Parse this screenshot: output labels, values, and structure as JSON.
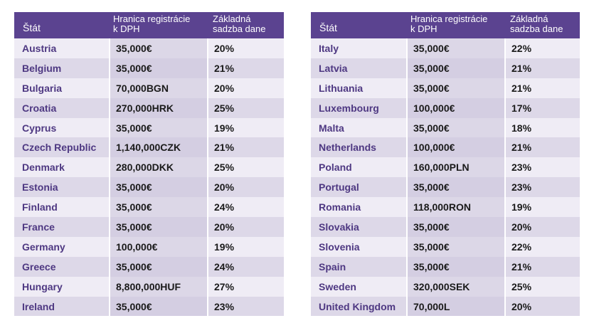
{
  "headers": {
    "country": "Štát",
    "threshold_line1": "Hranica registrácie",
    "threshold_line2": "k DPH",
    "rate_line1": "Základná",
    "rate_line2": "sadzba dane"
  },
  "left_rows": [
    {
      "country": "Austria",
      "threshold": "35,000€",
      "rate": "20%"
    },
    {
      "country": "Belgium",
      "threshold": "35,000€",
      "rate": "21%"
    },
    {
      "country": "Bulgaria",
      "threshold": "70,000BGN",
      "rate": "20%"
    },
    {
      "country": "Croatia",
      "threshold": "270,000HRK",
      "rate": "25%"
    },
    {
      "country": "Cyprus",
      "threshold": "35,000€",
      "rate": "19%"
    },
    {
      "country": "Czech Republic",
      "threshold": "1,140,000CZK",
      "rate": "21%"
    },
    {
      "country": "Denmark",
      "threshold": "280,000DKK",
      "rate": "25%"
    },
    {
      "country": "Estonia",
      "threshold": "35,000€",
      "rate": "20%"
    },
    {
      "country": "Finland",
      "threshold": "35,000€",
      "rate": "24%"
    },
    {
      "country": "France",
      "threshold": "35,000€",
      "rate": "20%"
    },
    {
      "country": "Germany",
      "threshold": "100,000€",
      "rate": "19%"
    },
    {
      "country": "Greece",
      "threshold": "35,000€",
      "rate": "24%"
    },
    {
      "country": "Hungary",
      "threshold": "8,800,000HUF",
      "rate": "27%"
    },
    {
      "country": "Ireland",
      "threshold": "35,000€",
      "rate": "23%"
    }
  ],
  "right_rows": [
    {
      "country": "Italy",
      "threshold": "35,000€",
      "rate": "22%"
    },
    {
      "country": "Latvia",
      "threshold": "35,000€",
      "rate": "21%"
    },
    {
      "country": "Lithuania",
      "threshold": "35,000€",
      "rate": "21%"
    },
    {
      "country": "Luxembourg",
      "threshold": "100,000€",
      "rate": "17%"
    },
    {
      "country": "Malta",
      "threshold": "35,000€",
      "rate": "18%"
    },
    {
      "country": "Netherlands",
      "threshold": "100,000€",
      "rate": "21%"
    },
    {
      "country": "Poland",
      "threshold": "160,000PLN",
      "rate": "23%"
    },
    {
      "country": "Portugal",
      "threshold": "35,000€",
      "rate": "23%"
    },
    {
      "country": "Romania",
      "threshold": "118,000RON",
      "rate": "19%"
    },
    {
      "country": "Slovakia",
      "threshold": "35,000€",
      "rate": "20%"
    },
    {
      "country": "Slovenia",
      "threshold": "35,000€",
      "rate": "22%"
    },
    {
      "country": "Spain",
      "threshold": "35,000€",
      "rate": "21%"
    },
    {
      "country": "Sweden",
      "threshold": "320,000SEK",
      "rate": "25%"
    },
    {
      "country": "United Kingdom",
      "threshold": "70,000L",
      "rate": "20%"
    }
  ],
  "colors": {
    "header_bg": "#5b4390",
    "country_text": "#4e3882",
    "row_light": "#efecf5",
    "row_dark": "#ddd8e8"
  }
}
